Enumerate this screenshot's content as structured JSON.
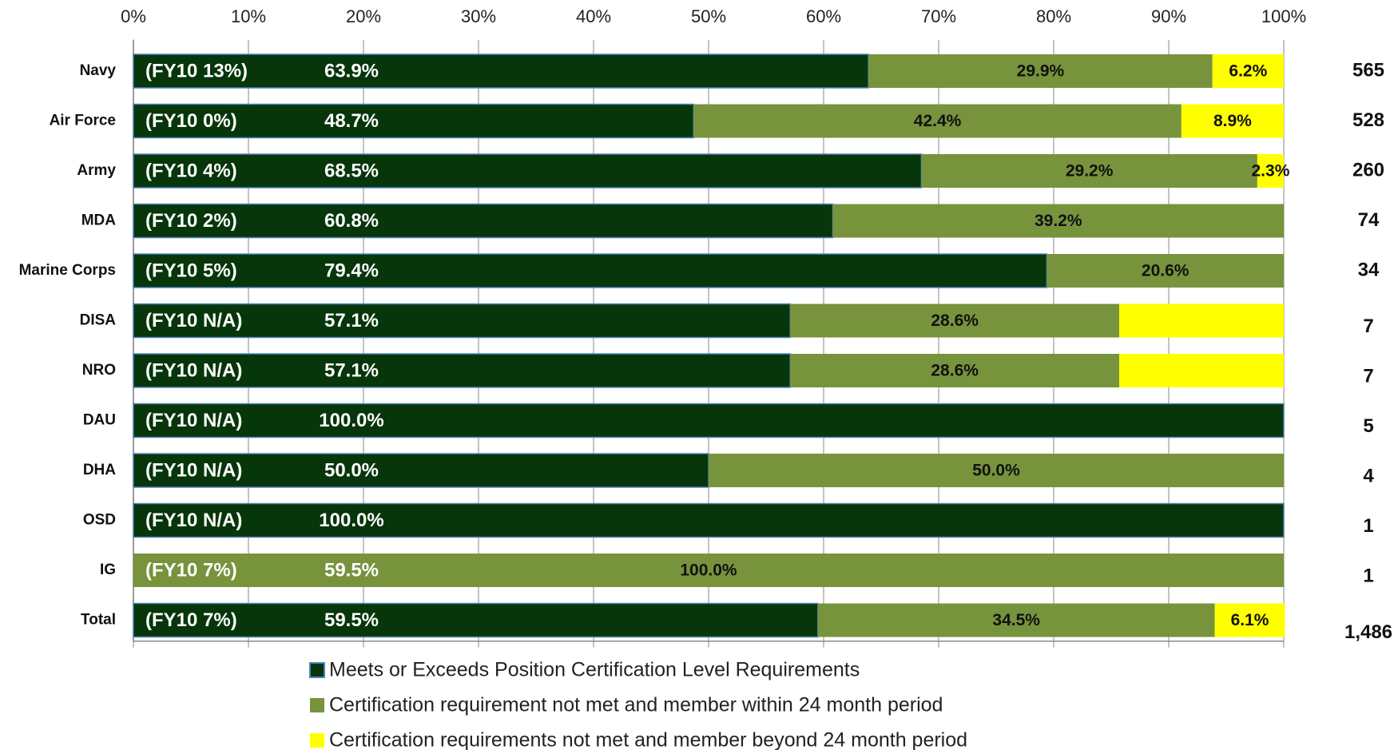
{
  "chart_data": {
    "type": "stacked-barh",
    "categories": [
      "Navy",
      "Air Force",
      "Army",
      "MDA",
      "Marine Corps",
      "DISA",
      "NRO",
      "DAU",
      "DHA",
      "OSD",
      "IG",
      "Total"
    ],
    "fy10_labels": [
      "(FY10 13%)",
      "(FY10 0%)",
      "(FY10 4%)",
      "(FY10 2%)",
      "(FY10 5%)",
      "(FY10 N/A)",
      "(FY10 N/A)",
      "(FY10 N/A)",
      "(FY10 N/A)",
      "(FY10 N/A)",
      "(FY10 7%)",
      "(FY10 7%)"
    ],
    "series": [
      {
        "name": "Meets or Exceeds Position Certification Level Requirements",
        "color": "#06360a",
        "label_color": "#ffffff",
        "values": [
          63.9,
          48.7,
          68.5,
          60.8,
          79.4,
          57.1,
          57.1,
          100.0,
          50.0,
          100.0,
          null,
          59.5
        ],
        "value_labels": [
          "63.9%",
          "48.7%",
          "68.5%",
          "60.8%",
          "79.4%",
          "57.1%",
          "57.1%",
          "100.0%",
          "50.0%",
          "100.0%",
          null,
          "59.5%"
        ]
      },
      {
        "name": "Certification requirement not met and member within 24 month period",
        "color": "#77933c",
        "label_color": "#111111",
        "values": [
          29.9,
          42.4,
          29.2,
          39.2,
          20.6,
          28.6,
          28.6,
          null,
          50.0,
          null,
          100.0,
          34.5
        ],
        "value_labels": [
          "29.9%",
          "42.4%",
          "29.2%",
          "39.2%",
          "20.6%",
          "28.6%",
          "28.6%",
          null,
          "50.0%",
          null,
          "100.0%",
          "34.5%"
        ]
      },
      {
        "name": "Certification requirements not met and member beyond 24 month period",
        "color": "#ffff00",
        "label_color": "#111111",
        "values": [
          6.2,
          8.9,
          2.3,
          null,
          null,
          14.3,
          14.3,
          null,
          null,
          null,
          null,
          6.1
        ],
        "value_labels": [
          "6.2%",
          "8.9%",
          "2.3%",
          null,
          null,
          null,
          null,
          null,
          null,
          null,
          null,
          "6.1%"
        ]
      }
    ],
    "annotations": [
      {
        "category": "IG",
        "text": "59.5%"
      }
    ],
    "counts": {
      "values": [
        565,
        528,
        260,
        74,
        34,
        7,
        7,
        5,
        4,
        1,
        1,
        1486
      ],
      "value_labels": [
        "565",
        "528",
        "260",
        "74",
        "34",
        "7",
        "7",
        "5",
        "4",
        "1",
        "1",
        "1,486"
      ]
    },
    "xlim": [
      0,
      100
    ],
    "xticks": [
      {
        "value": 0,
        "label": "0%"
      },
      {
        "value": 10,
        "label": "10%"
      },
      {
        "value": 20,
        "label": "20%"
      },
      {
        "value": 30,
        "label": "30%"
      },
      {
        "value": 40,
        "label": "40%"
      },
      {
        "value": 50,
        "label": "50%"
      },
      {
        "value": 60,
        "label": "60%"
      },
      {
        "value": 70,
        "label": "70%"
      },
      {
        "value": 80,
        "label": "80%"
      },
      {
        "value": 90,
        "label": "90%"
      },
      {
        "value": 100,
        "label": "100%"
      }
    ],
    "grid": true
  }
}
